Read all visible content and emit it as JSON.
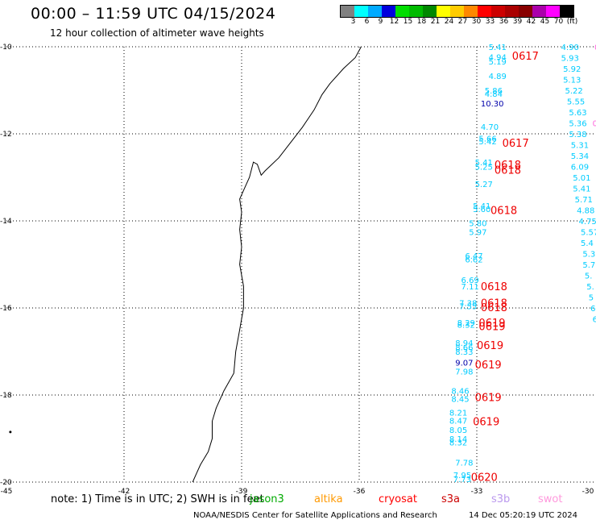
{
  "header": {
    "title": "00:00 – 11:59 UTC 04/15/2024",
    "subtitle": "12 hour collection of altimeter wave heights"
  },
  "colorbar": {
    "colors": [
      "#808080",
      "#00ffff",
      "#00aaff",
      "#0000dd",
      "#00dd00",
      "#00bb00",
      "#008800",
      "#ffff00",
      "#ffcc00",
      "#ff8800",
      "#ff0000",
      "#cc0000",
      "#aa0000",
      "#880000",
      "#aa00aa",
      "#ff00ff",
      "#000000"
    ],
    "labels": [
      "3",
      "6",
      "9",
      "12",
      "15",
      "18",
      "21",
      "24",
      "27",
      "30",
      "33",
      "36",
      "39",
      "42",
      "45",
      "70",
      "(ft)"
    ]
  },
  "map": {
    "lon_range": [
      -45,
      -30
    ],
    "lat_range": [
      -20,
      -10
    ],
    "lon_ticks": [
      {
        "v": -45,
        "label": "-45"
      },
      {
        "v": -42,
        "label": "-42"
      },
      {
        "v": -39,
        "label": "-39"
      },
      {
        "v": -36,
        "label": "-36"
      },
      {
        "v": -33,
        "label": "-33"
      },
      {
        "v": -30,
        "label": "-30"
      }
    ],
    "lat_ticks": [
      {
        "v": -10,
        "label": "-10"
      },
      {
        "v": -12,
        "label": "-12"
      },
      {
        "v": -14,
        "label": "-14"
      },
      {
        "v": -16,
        "label": "-16"
      },
      {
        "v": -18,
        "label": "-18"
      },
      {
        "v": -20,
        "label": "-20"
      }
    ],
    "coastline": [
      [
        -35.95,
        -10.0
      ],
      [
        -36.1,
        -10.25
      ],
      [
        -36.4,
        -10.5
      ],
      [
        -36.75,
        -10.85
      ],
      [
        -36.95,
        -11.1
      ],
      [
        -37.15,
        -11.45
      ],
      [
        -37.45,
        -11.85
      ],
      [
        -37.75,
        -12.2
      ],
      [
        -38.05,
        -12.55
      ],
      [
        -38.4,
        -12.85
      ],
      [
        -38.5,
        -12.95
      ],
      [
        -38.6,
        -12.7
      ],
      [
        -38.7,
        -12.65
      ],
      [
        -38.8,
        -13.0
      ],
      [
        -38.95,
        -13.3
      ],
      [
        -39.05,
        -13.5
      ],
      [
        -39.0,
        -13.8
      ],
      [
        -39.05,
        -14.2
      ],
      [
        -39.0,
        -14.6
      ],
      [
        -39.05,
        -15.0
      ],
      [
        -38.95,
        -15.5
      ],
      [
        -38.95,
        -16.0
      ],
      [
        -39.05,
        -16.5
      ],
      [
        -39.15,
        -17.0
      ],
      [
        -39.2,
        -17.5
      ],
      [
        -39.45,
        -17.9
      ],
      [
        -39.65,
        -18.3
      ],
      [
        -39.75,
        -18.6
      ],
      [
        -39.75,
        -19.0
      ],
      [
        -39.85,
        -19.3
      ],
      [
        -40.05,
        -19.6
      ],
      [
        -40.15,
        -19.8
      ],
      [
        -40.25,
        -20.0
      ]
    ],
    "islands": [
      [
        -44.9,
        -18.85
      ]
    ]
  },
  "observations": [
    {
      "lon": -32.7,
      "lat": -10.0,
      "text": "5.41",
      "color": "#00ccff"
    },
    {
      "lon": -32.7,
      "lat": -10.23,
      "text": "4.94",
      "color": "#00ccff"
    },
    {
      "lon": -32.7,
      "lat": -10.33,
      "text": "5.19",
      "color": "#00ccff"
    },
    {
      "lon": -32.7,
      "lat": -10.67,
      "text": "4.89",
      "color": "#00ccff"
    },
    {
      "lon": -32.8,
      "lat": -11.0,
      "text": "5.86",
      "color": "#00ccff"
    },
    {
      "lon": -32.8,
      "lat": -11.07,
      "text": "4.84",
      "color": "#00ccff"
    },
    {
      "lon": -32.9,
      "lat": -11.3,
      "text": "10.30",
      "color": "#0000aa"
    },
    {
      "lon": -32.9,
      "lat": -11.83,
      "text": "4.70",
      "color": "#00ccff"
    },
    {
      "lon": -32.95,
      "lat": -12.1,
      "text": "5.66",
      "color": "#00ccff"
    },
    {
      "lon": -32.95,
      "lat": -12.17,
      "text": "5.42",
      "color": "#00ccff"
    },
    {
      "lon": -33.05,
      "lat": -12.65,
      "text": "5.41",
      "color": "#00ccff"
    },
    {
      "lon": -33.05,
      "lat": -12.75,
      "text": "5.25",
      "color": "#00ccff"
    },
    {
      "lon": -33.05,
      "lat": -13.15,
      "text": "5.27",
      "color": "#00ccff"
    },
    {
      "lon": -33.1,
      "lat": -13.65,
      "text": "5.41",
      "color": "#00ccff"
    },
    {
      "lon": -33.1,
      "lat": -13.72,
      "text": "5.60",
      "color": "#00ccff"
    },
    {
      "lon": -33.2,
      "lat": -14.05,
      "text": "5.80",
      "color": "#00ccff"
    },
    {
      "lon": -33.2,
      "lat": -14.25,
      "text": "5.97",
      "color": "#00ccff"
    },
    {
      "lon": -33.3,
      "lat": -14.8,
      "text": "6.47",
      "color": "#00ccff"
    },
    {
      "lon": -33.3,
      "lat": -14.88,
      "text": "6.62",
      "color": "#00ccff"
    },
    {
      "lon": -33.4,
      "lat": -15.35,
      "text": "6.69",
      "color": "#00ccff"
    },
    {
      "lon": -33.4,
      "lat": -15.5,
      "text": "7.11",
      "color": "#00ccff"
    },
    {
      "lon": -33.45,
      "lat": -15.88,
      "text": "7.38",
      "color": "#00ccff"
    },
    {
      "lon": -33.45,
      "lat": -15.95,
      "text": "7.55",
      "color": "#00ccff"
    },
    {
      "lon": -33.5,
      "lat": -16.33,
      "text": "8.29",
      "color": "#00ccff"
    },
    {
      "lon": -33.5,
      "lat": -16.38,
      "text": "8.32",
      "color": "#00ccff"
    },
    {
      "lon": -33.55,
      "lat": -16.8,
      "text": "8.94",
      "color": "#00ccff"
    },
    {
      "lon": -33.55,
      "lat": -16.9,
      "text": "8.66",
      "color": "#00ccff"
    },
    {
      "lon": -33.55,
      "lat": -17.0,
      "text": "8.33",
      "color": "#00ccff"
    },
    {
      "lon": -33.55,
      "lat": -17.25,
      "text": "9.07",
      "color": "#0000aa"
    },
    {
      "lon": -33.55,
      "lat": -17.45,
      "text": "7.98",
      "color": "#00ccff"
    },
    {
      "lon": -33.65,
      "lat": -17.9,
      "text": "8.46",
      "color": "#00ccff"
    },
    {
      "lon": -33.65,
      "lat": -18.08,
      "text": "8.45",
      "color": "#00ccff"
    },
    {
      "lon": -33.7,
      "lat": -18.4,
      "text": "8.21",
      "color": "#00ccff"
    },
    {
      "lon": -33.7,
      "lat": -18.58,
      "text": "8.47",
      "color": "#00ccff"
    },
    {
      "lon": -33.7,
      "lat": -18.8,
      "text": "8.05",
      "color": "#00ccff"
    },
    {
      "lon": -33.7,
      "lat": -19.0,
      "text": "8.14",
      "color": "#00ccff"
    },
    {
      "lon": -33.7,
      "lat": -19.08,
      "text": "8.32",
      "color": "#00ccff"
    },
    {
      "lon": -33.55,
      "lat": -19.55,
      "text": "7.78",
      "color": "#00ccff"
    },
    {
      "lon": -33.6,
      "lat": -19.83,
      "text": "7.95",
      "color": "#00ccff"
    },
    {
      "lon": -33.6,
      "lat": -19.93,
      "text": "7.73",
      "color": "#00ccff"
    },
    {
      "lon": -30.85,
      "lat": -10.0,
      "text": "4.90",
      "color": "#00ccff"
    },
    {
      "lon": -30.0,
      "lat": -10.0,
      "text": "02",
      "color": "#ff66dd"
    },
    {
      "lon": -30.85,
      "lat": -10.25,
      "text": "5.93",
      "color": "#00ccff"
    },
    {
      "lon": -30.8,
      "lat": -10.5,
      "text": "5.92",
      "color": "#00ccff"
    },
    {
      "lon": -30.8,
      "lat": -10.75,
      "text": "5.13",
      "color": "#00ccff"
    },
    {
      "lon": -30.75,
      "lat": -11.0,
      "text": "5.22",
      "color": "#00ccff"
    },
    {
      "lon": -30.7,
      "lat": -11.25,
      "text": "5.55",
      "color": "#00ccff"
    },
    {
      "lon": -30.65,
      "lat": -11.5,
      "text": "5.63",
      "color": "#00ccff"
    },
    {
      "lon": -30.65,
      "lat": -11.75,
      "text": "5.36",
      "color": "#00ccff"
    },
    {
      "lon": -30.05,
      "lat": -11.75,
      "text": "0",
      "color": "#ff66dd"
    },
    {
      "lon": -30.65,
      "lat": -12.0,
      "text": "5.38",
      "color": "#00ccff"
    },
    {
      "lon": -30.6,
      "lat": -12.25,
      "text": "5.31",
      "color": "#00ccff"
    },
    {
      "lon": -30.6,
      "lat": -12.5,
      "text": "5.34",
      "color": "#00ccff"
    },
    {
      "lon": -30.6,
      "lat": -12.75,
      "text": "6.09",
      "color": "#00ccff"
    },
    {
      "lon": -30.55,
      "lat": -13.0,
      "text": "5.01",
      "color": "#00ccff"
    },
    {
      "lon": -30.55,
      "lat": -13.25,
      "text": "5.41",
      "color": "#00ccff"
    },
    {
      "lon": -30.5,
      "lat": -13.5,
      "text": "5.71",
      "color": "#00ccff"
    },
    {
      "lon": -30.45,
      "lat": -13.75,
      "text": "4.88",
      "color": "#00ccff"
    },
    {
      "lon": -30.4,
      "lat": -14.0,
      "text": "4.75",
      "color": "#00ccff"
    },
    {
      "lon": -30.35,
      "lat": -14.25,
      "text": "5.57",
      "color": "#00ccff"
    },
    {
      "lon": -30.35,
      "lat": -14.5,
      "text": "5.4",
      "color": "#00ccff"
    },
    {
      "lon": -30.3,
      "lat": -14.75,
      "text": "5.3",
      "color": "#00ccff"
    },
    {
      "lon": -30.3,
      "lat": -15.0,
      "text": "5.7",
      "color": "#00ccff"
    },
    {
      "lon": -30.25,
      "lat": -15.25,
      "text": "5.",
      "color": "#00ccff"
    },
    {
      "lon": -30.2,
      "lat": -15.5,
      "text": "5.",
      "color": "#00ccff"
    },
    {
      "lon": -30.15,
      "lat": -15.75,
      "text": "5",
      "color": "#00ccff"
    },
    {
      "lon": -30.1,
      "lat": -16.0,
      "text": "6",
      "color": "#00ccff"
    },
    {
      "lon": -30.05,
      "lat": -16.25,
      "text": "6",
      "color": "#00ccff"
    }
  ],
  "time_labels": [
    {
      "lon": -32.1,
      "lat": -10.2,
      "text": "0617"
    },
    {
      "lon": -32.35,
      "lat": -12.2,
      "text": "0617"
    },
    {
      "lon": -32.55,
      "lat": -12.7,
      "text": "0618"
    },
    {
      "lon": -32.55,
      "lat": -12.82,
      "text": "0618"
    },
    {
      "lon": -32.65,
      "lat": -13.75,
      "text": "0618"
    },
    {
      "lon": -32.9,
      "lat": -15.5,
      "text": "0618"
    },
    {
      "lon": -32.9,
      "lat": -15.88,
      "text": "0618"
    },
    {
      "lon": -32.9,
      "lat": -15.98,
      "text": "0618"
    },
    {
      "lon": -32.95,
      "lat": -16.33,
      "text": "0619"
    },
    {
      "lon": -32.95,
      "lat": -16.42,
      "text": "0619"
    },
    {
      "lon": -33.0,
      "lat": -16.85,
      "text": "0619"
    },
    {
      "lon": -33.05,
      "lat": -17.3,
      "text": "0619"
    },
    {
      "lon": -33.05,
      "lat": -18.05,
      "text": "0619"
    },
    {
      "lon": -33.1,
      "lat": -18.6,
      "text": "0619"
    },
    {
      "lon": -33.15,
      "lat": -19.88,
      "text": "0620"
    }
  ],
  "legend": {
    "note": "note: 1) Time is in UTC; 2) SWH is in feet",
    "satellites": [
      {
        "name": "jason3",
        "color": "#00aa00"
      },
      {
        "name": "altika",
        "color": "#ff9900"
      },
      {
        "name": "cryosat",
        "color": "#ff0000"
      },
      {
        "name": "s3a",
        "color": "#cc0000"
      },
      {
        "name": "s3b",
        "color": "#bb99ee"
      },
      {
        "name": "swot",
        "color": "#ff99dd"
      }
    ]
  },
  "footer": {
    "credit": "NOAA/NESDIS Center for Satellite Applications and Research",
    "timestamp": "14 Dec 05:20:19 UTC 2024"
  }
}
